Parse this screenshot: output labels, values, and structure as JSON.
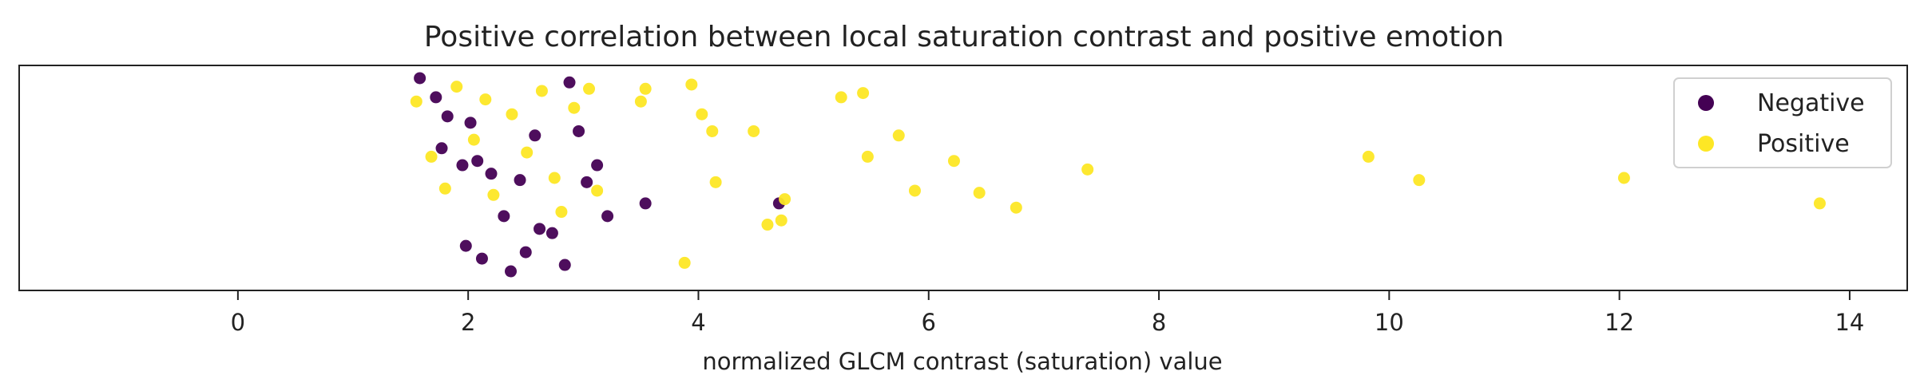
{
  "chart_data": {
    "type": "scatter",
    "title": "Positive correlation between local saturation contrast and positive emotion",
    "xlabel": "normalized GLCM contrast (saturation) value",
    "ylabel": "",
    "xlim": [
      -1.9,
      14.5
    ],
    "ylim": [
      0,
      1
    ],
    "x_ticks": [
      0,
      2,
      4,
      6,
      8,
      10,
      12,
      14
    ],
    "x_tick_labels": [
      "0",
      "2",
      "4",
      "6",
      "8",
      "10",
      "12",
      "14"
    ],
    "y_ticks_visible": false,
    "grid": false,
    "legend_position": "top-right",
    "series": [
      {
        "name": "Negative",
        "color": "#440154",
        "points": [
          [
            1.58,
            0.97
          ],
          [
            1.72,
            0.88
          ],
          [
            1.77,
            0.64
          ],
          [
            1.82,
            0.79
          ],
          [
            1.95,
            0.56
          ],
          [
            2.02,
            0.76
          ],
          [
            2.08,
            0.58
          ],
          [
            2.2,
            0.52
          ],
          [
            2.31,
            0.32
          ],
          [
            2.45,
            0.49
          ],
          [
            2.58,
            0.7
          ],
          [
            2.62,
            0.26
          ],
          [
            2.73,
            0.24
          ],
          [
            2.88,
            0.95
          ],
          [
            2.96,
            0.72
          ],
          [
            3.03,
            0.48
          ],
          [
            3.12,
            0.56
          ],
          [
            3.21,
            0.32
          ],
          [
            3.54,
            0.38
          ],
          [
            4.7,
            0.38
          ],
          [
            1.98,
            0.18
          ],
          [
            2.12,
            0.12
          ],
          [
            2.37,
            0.06
          ],
          [
            2.5,
            0.15
          ],
          [
            2.84,
            0.09
          ]
        ]
      },
      {
        "name": "Positive",
        "color": "#fde725",
        "points": [
          [
            1.55,
            0.86
          ],
          [
            1.68,
            0.6
          ],
          [
            1.8,
            0.45
          ],
          [
            1.9,
            0.93
          ],
          [
            2.05,
            0.68
          ],
          [
            2.15,
            0.87
          ],
          [
            2.22,
            0.42
          ],
          [
            2.38,
            0.8
          ],
          [
            2.51,
            0.62
          ],
          [
            2.64,
            0.91
          ],
          [
            2.75,
            0.5
          ],
          [
            2.81,
            0.34
          ],
          [
            2.92,
            0.83
          ],
          [
            3.05,
            0.92
          ],
          [
            3.12,
            0.44
          ],
          [
            3.5,
            0.86
          ],
          [
            3.54,
            0.92
          ],
          [
            3.88,
            0.1
          ],
          [
            3.94,
            0.94
          ],
          [
            4.03,
            0.8
          ],
          [
            4.12,
            0.72
          ],
          [
            4.15,
            0.48
          ],
          [
            4.48,
            0.72
          ],
          [
            4.6,
            0.28
          ],
          [
            4.72,
            0.3
          ],
          [
            4.75,
            0.4
          ],
          [
            5.24,
            0.88
          ],
          [
            5.43,
            0.9
          ],
          [
            5.47,
            0.6
          ],
          [
            5.74,
            0.7
          ],
          [
            5.88,
            0.44
          ],
          [
            6.22,
            0.58
          ],
          [
            6.44,
            0.43
          ],
          [
            6.76,
            0.36
          ],
          [
            7.38,
            0.54
          ],
          [
            9.82,
            0.6
          ],
          [
            10.26,
            0.49
          ],
          [
            12.04,
            0.5
          ],
          [
            13.74,
            0.38
          ]
        ]
      }
    ]
  }
}
